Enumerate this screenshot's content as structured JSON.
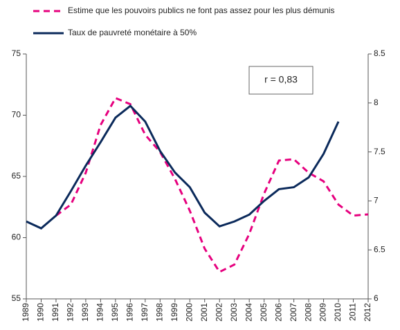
{
  "chart_data": {
    "type": "line",
    "categories": [
      "1989",
      "1990",
      "1991",
      "1992",
      "1993",
      "1994",
      "1995",
      "1996",
      "1997",
      "1998",
      "1999",
      "2000",
      "2001",
      "2002",
      "2003",
      "2004",
      "2005",
      "2006",
      "2007",
      "2008",
      "2009",
      "2010",
      "2011",
      "2012"
    ],
    "series": [
      {
        "name": "Estime que les pouvoirs publics ne font pas assez pour les plus démunis",
        "color": "#e6007e",
        "dashed": true,
        "axis": "y",
        "values": [
          null,
          null,
          61.8,
          62.7,
          65.3,
          69.2,
          71.4,
          70.9,
          68.4,
          67.0,
          64.8,
          62.2,
          59.1,
          57.2,
          57.8,
          60.3,
          63.6,
          66.3,
          66.4,
          65.3,
          64.6,
          62.7,
          61.8,
          61.9
        ]
      },
      {
        "name": "Taux de pauvreté monétaire à 50%",
        "color": "#0b2a5b",
        "dashed": false,
        "axis": "y2",
        "values": [
          6.79,
          6.72,
          6.85,
          7.1,
          7.36,
          7.6,
          7.85,
          7.97,
          7.81,
          7.51,
          7.29,
          7.14,
          6.88,
          6.74,
          6.79,
          6.86,
          7.0,
          7.12,
          7.14,
          7.24,
          7.48,
          7.81,
          null,
          null
        ]
      }
    ],
    "ylim": [
      55,
      75
    ],
    "yticks": [
      55,
      60,
      65,
      70,
      75
    ],
    "y2lim": [
      6,
      8.5
    ],
    "y2ticks": [
      6,
      6.5,
      7,
      7.5,
      8,
      8.5
    ],
    "annotation": "r = 0,83",
    "legend": "top"
  }
}
